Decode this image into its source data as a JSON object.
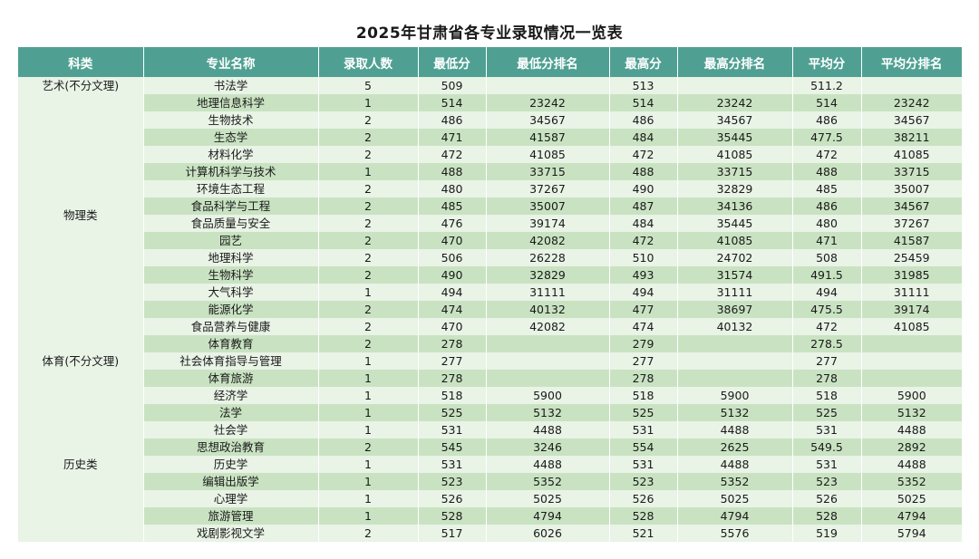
{
  "title": "2025年甘肃省各专业录取情况一览表",
  "headers": [
    "科类",
    "专业名称",
    "录取人数",
    "最低分",
    "最低分排名",
    "最高分",
    "最高分排名",
    "平均分",
    "平均分排名"
  ],
  "colors": {
    "header_bg": "#4fa093",
    "row_light": "#e9f3e6",
    "row_dark": "#c9e3c2"
  },
  "groups": [
    {
      "category": "艺术(不分文理)",
      "rows": [
        [
          "书法学",
          "5",
          "509",
          "",
          "513",
          "",
          "511.2",
          ""
        ]
      ]
    },
    {
      "category": "物理类",
      "rows": [
        [
          "地理信息科学",
          "1",
          "514",
          "23242",
          "514",
          "23242",
          "514",
          "23242"
        ],
        [
          "生物技术",
          "2",
          "486",
          "34567",
          "486",
          "34567",
          "486",
          "34567"
        ],
        [
          "生态学",
          "2",
          "471",
          "41587",
          "484",
          "35445",
          "477.5",
          "38211"
        ],
        [
          "材料化学",
          "2",
          "472",
          "41085",
          "472",
          "41085",
          "472",
          "41085"
        ],
        [
          "计算机科学与技术",
          "1",
          "488",
          "33715",
          "488",
          "33715",
          "488",
          "33715"
        ],
        [
          "环境生态工程",
          "2",
          "480",
          "37267",
          "490",
          "32829",
          "485",
          "35007"
        ],
        [
          "食品科学与工程",
          "2",
          "485",
          "35007",
          "487",
          "34136",
          "486",
          "34567"
        ],
        [
          "食品质量与安全",
          "2",
          "476",
          "39174",
          "484",
          "35445",
          "480",
          "37267"
        ],
        [
          "园艺",
          "2",
          "470",
          "42082",
          "472",
          "41085",
          "471",
          "41587"
        ],
        [
          "地理科学",
          "2",
          "506",
          "26228",
          "510",
          "24702",
          "508",
          "25459"
        ],
        [
          "生物科学",
          "2",
          "490",
          "32829",
          "493",
          "31574",
          "491.5",
          "31985"
        ],
        [
          "大气科学",
          "1",
          "494",
          "31111",
          "494",
          "31111",
          "494",
          "31111"
        ],
        [
          "能源化学",
          "2",
          "474",
          "40132",
          "477",
          "38697",
          "475.5",
          "39174"
        ],
        [
          "食品营养与健康",
          "2",
          "470",
          "42082",
          "474",
          "40132",
          "472",
          "41085"
        ]
      ]
    },
    {
      "category": "体育(不分文理)",
      "rows": [
        [
          "体育教育",
          "2",
          "278",
          "",
          "279",
          "",
          "278.5",
          ""
        ],
        [
          "社会体育指导与管理",
          "1",
          "277",
          "",
          "277",
          "",
          "277",
          ""
        ],
        [
          "体育旅游",
          "1",
          "278",
          "",
          "278",
          "",
          "278",
          ""
        ]
      ]
    },
    {
      "category": "历史类",
      "rows": [
        [
          "经济学",
          "1",
          "518",
          "5900",
          "518",
          "5900",
          "518",
          "5900"
        ],
        [
          "法学",
          "1",
          "525",
          "5132",
          "525",
          "5132",
          "525",
          "5132"
        ],
        [
          "社会学",
          "1",
          "531",
          "4488",
          "531",
          "4488",
          "531",
          "4488"
        ],
        [
          "思想政治教育",
          "2",
          "545",
          "3246",
          "554",
          "2625",
          "549.5",
          "2892"
        ],
        [
          "历史学",
          "1",
          "531",
          "4488",
          "531",
          "4488",
          "531",
          "4488"
        ],
        [
          "编辑出版学",
          "1",
          "523",
          "5352",
          "523",
          "5352",
          "523",
          "5352"
        ],
        [
          "心理学",
          "1",
          "526",
          "5025",
          "526",
          "5025",
          "526",
          "5025"
        ],
        [
          "旅游管理",
          "1",
          "528",
          "4794",
          "528",
          "4794",
          "528",
          "4794"
        ],
        [
          "戏剧影视文学",
          "2",
          "517",
          "6026",
          "521",
          "5576",
          "519",
          "5794"
        ]
      ]
    }
  ]
}
